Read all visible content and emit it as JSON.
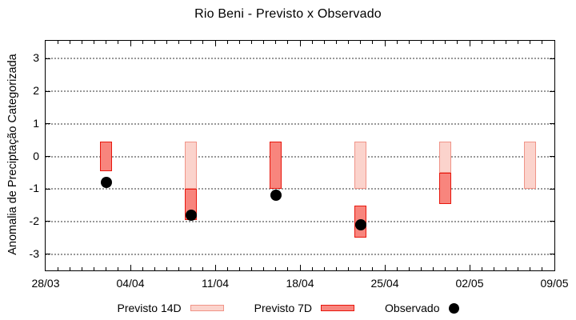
{
  "title": "Rio Beni - Previsto x Observado",
  "chart_data": {
    "type": "bar",
    "subtype": "weekly forecast range bars (floating) + observed scatter dots",
    "title": "Rio Beni - Previsto x Observado",
    "xlabel": "",
    "ylabel": "Anomalia de Preciptação Categorizada",
    "ylim": [
      -3.5,
      3.55
    ],
    "yticks": [
      3,
      2,
      1,
      0,
      -1,
      -2,
      -3
    ],
    "xtick_labels": [
      "28/03",
      "04/04",
      "11/04",
      "18/04",
      "25/04",
      "02/05",
      "09/05"
    ],
    "x_major_tick_interval_days": 7,
    "x_minor_tick_interval_days": 1,
    "x_total_days": 42,
    "grid": "horizontal dotted gray lines at integer y values",
    "legend_position": "bottom, outside plot",
    "colors": {
      "previsto_14d_fill": "#fbd3cc",
      "previsto_14d_border": "#f09488",
      "previsto_7d_fill": "#f8857d",
      "previsto_7d_border": "#e8170d",
      "observado": "#000000",
      "grid": "#999999",
      "frame": "#000000"
    },
    "series": [
      {
        "name": "Previsto 14D",
        "type": "bar-range",
        "data_name": "previsto-14d-bar",
        "color_fill": "#fbd3cc",
        "color_border": "#f09488",
        "points": [
          {
            "date": "09/04",
            "day": 12,
            "low": -1.0,
            "high": 0.45
          },
          {
            "date": "23/04",
            "day": 26,
            "low": -1.0,
            "high": 0.45
          },
          {
            "date": "30/04",
            "day": 33,
            "low": -0.5,
            "high": 0.45
          },
          {
            "date": "07/05",
            "day": 40,
            "low": -1.0,
            "high": 0.45
          }
        ]
      },
      {
        "name": "Previsto 7D",
        "type": "bar-range",
        "data_name": "previsto-7d-bar",
        "color_fill": "#f8857d",
        "color_border": "#e8170d",
        "points": [
          {
            "date": "02/04",
            "day": 5,
            "low": -0.45,
            "high": 0.45
          },
          {
            "date": "09/04",
            "day": 12,
            "low": -1.95,
            "high": -1.0
          },
          {
            "date": "16/04",
            "day": 19,
            "low": -1.0,
            "high": 0.45
          },
          {
            "date": "23/04",
            "day": 26,
            "low": -2.5,
            "high": -1.5
          },
          {
            "date": "30/04",
            "day": 33,
            "low": -1.45,
            "high": -0.5
          }
        ]
      },
      {
        "name": "Observado",
        "type": "scatter",
        "data_name": "observed-dot",
        "color": "#000000",
        "points": [
          {
            "date": "02/04",
            "day": 5,
            "value": -0.8
          },
          {
            "date": "09/04",
            "day": 12,
            "value": -1.8
          },
          {
            "date": "16/04",
            "day": 19,
            "value": -1.2
          },
          {
            "date": "23/04",
            "day": 26,
            "value": -2.1
          }
        ]
      }
    ]
  },
  "legend": {
    "items": [
      {
        "label": "Previsto 14D"
      },
      {
        "label": "Previsto 7D"
      },
      {
        "label": "Observado"
      }
    ]
  }
}
